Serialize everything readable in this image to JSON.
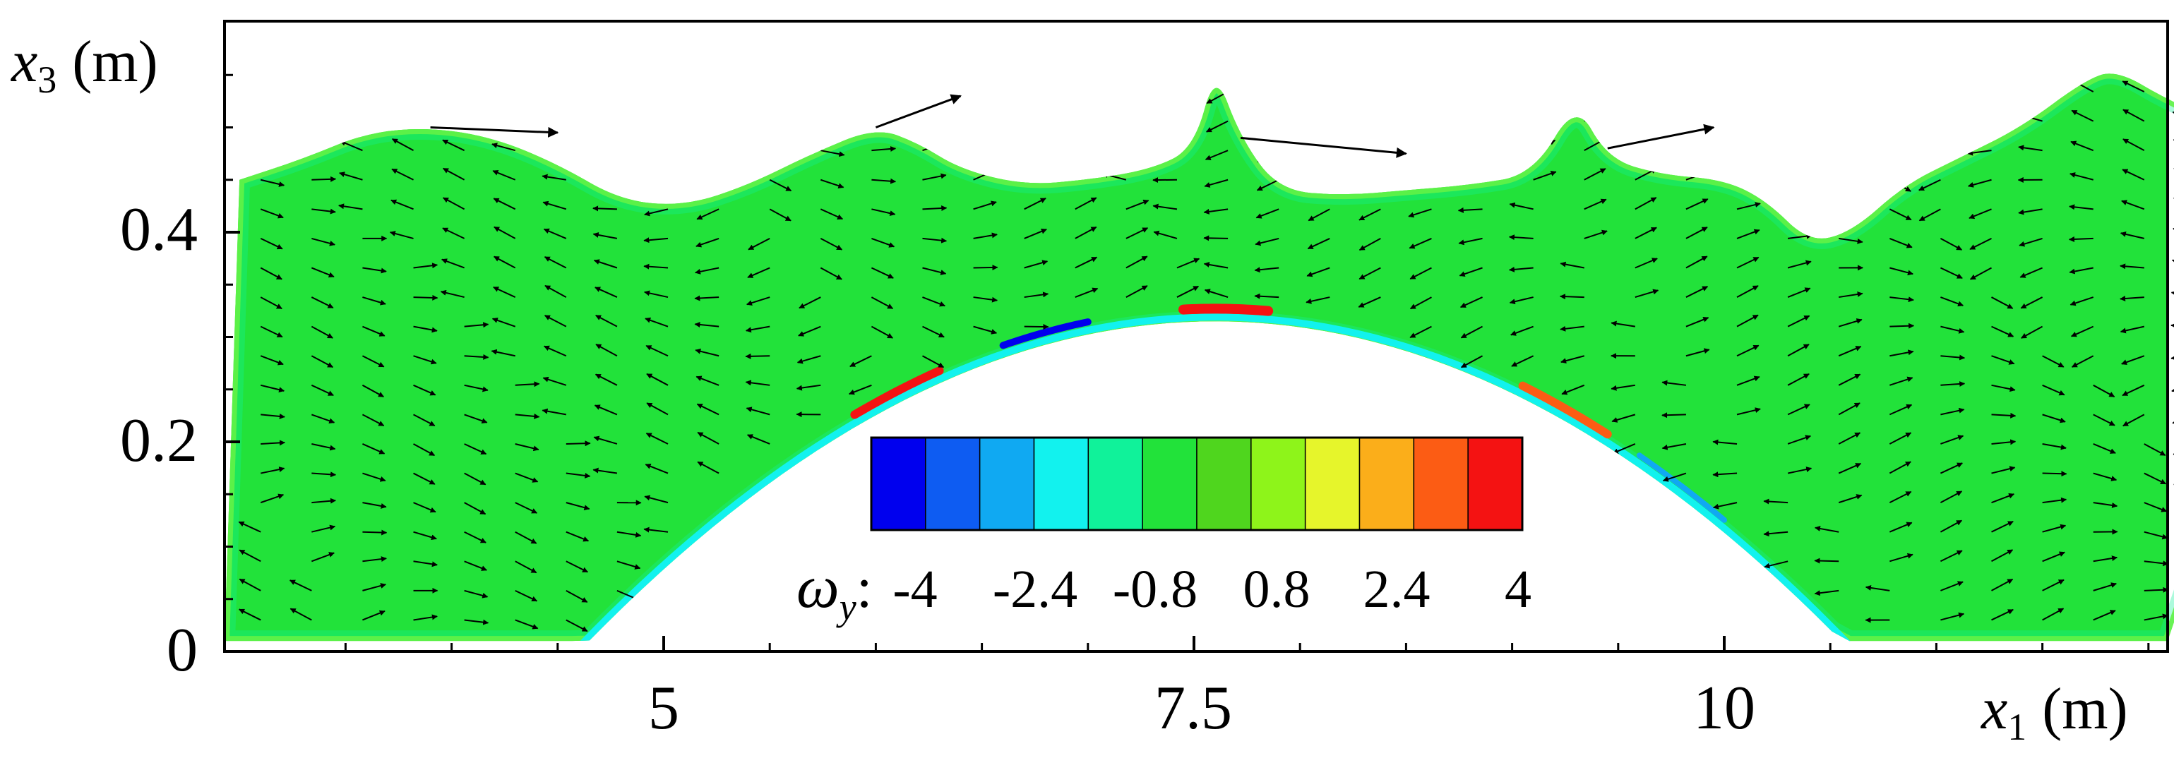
{
  "chart_data": {
    "type": "contour",
    "x_axis": {
      "symbol": "x",
      "subscript": "1",
      "unit": "(m)",
      "range": [
        3.0,
        12.9
      ],
      "ticks": [
        5,
        7.5,
        10
      ],
      "tick_labels": [
        "5",
        "7.5",
        "10"
      ]
    },
    "y_axis": {
      "symbol": "x",
      "subscript": "3",
      "unit": "(m)",
      "range": [
        0,
        0.6
      ],
      "ticks": [
        0,
        0.2,
        0.4
      ],
      "tick_labels": [
        "0",
        "0.2",
        "0.4"
      ]
    },
    "colorbar": {
      "variable_symbol": "ω",
      "variable_subscript": "y",
      "separator": ":",
      "min": -4.8,
      "max": 4.8,
      "levels": 12,
      "tick_values": [
        -4,
        -2.4,
        -0.8,
        0.8,
        2.4,
        4
      ],
      "tick_labels": [
        "-4",
        "-2.4",
        "-0.8",
        "0.8",
        "2.4",
        "4"
      ],
      "colors": [
        "#0000ee",
        "#0e5cf2",
        "#10a9f2",
        "#12f2ee",
        "#10f29a",
        "#22e23a",
        "#4fd61e",
        "#8ef41a",
        "#e6f52b",
        "#fbae1a",
        "#fc5c14",
        "#f41212"
      ]
    },
    "free_surface": [
      [
        3.0,
        0.45
      ],
      [
        3.3,
        0.47
      ],
      [
        3.6,
        0.495
      ],
      [
        3.9,
        0.5
      ],
      [
        4.2,
        0.49
      ],
      [
        4.5,
        0.465
      ],
      [
        4.8,
        0.43
      ],
      [
        5.1,
        0.425
      ],
      [
        5.4,
        0.445
      ],
      [
        5.7,
        0.475
      ],
      [
        6.0,
        0.5
      ],
      [
        6.2,
        0.485
      ],
      [
        6.4,
        0.46
      ],
      [
        6.7,
        0.445
      ],
      [
        7.0,
        0.45
      ],
      [
        7.3,
        0.46
      ],
      [
        7.5,
        0.48
      ],
      [
        7.6,
        0.555
      ],
      [
        7.72,
        0.49
      ],
      [
        7.9,
        0.44
      ],
      [
        8.2,
        0.435
      ],
      [
        8.5,
        0.44
      ],
      [
        8.8,
        0.445
      ],
      [
        9.1,
        0.455
      ],
      [
        9.3,
        0.525
      ],
      [
        9.45,
        0.47
      ],
      [
        9.7,
        0.455
      ],
      [
        10.0,
        0.45
      ],
      [
        10.2,
        0.43
      ],
      [
        10.4,
        0.39
      ],
      [
        10.6,
        0.4
      ],
      [
        10.85,
        0.445
      ],
      [
        11.1,
        0.47
      ],
      [
        11.4,
        0.5
      ],
      [
        11.7,
        0.545
      ],
      [
        11.85,
        0.555
      ],
      [
        12.1,
        0.525
      ],
      [
        12.4,
        0.5
      ],
      [
        12.9,
        0.49
      ]
    ],
    "bottom_bump": {
      "x_start": 4.6,
      "x_end": 10.6,
      "crest_x": 7.6,
      "crest_height": 0.315
    },
    "grid": false
  }
}
